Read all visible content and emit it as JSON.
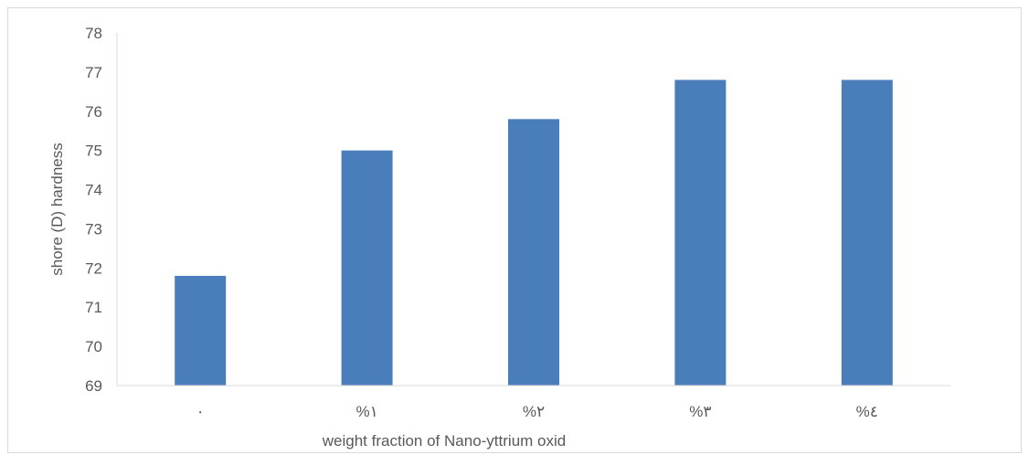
{
  "chart_data": {
    "type": "bar",
    "categories": [
      "٠",
      "%١",
      "%٢",
      "%٣",
      "%٤"
    ],
    "values": [
      71.8,
      75.0,
      75.8,
      76.8,
      76.8
    ],
    "title": "",
    "xlabel": "weight fraction of Nano-yttrium oxid",
    "ylabel": "shore (D)  hardness",
    "ylim": [
      69,
      78
    ],
    "yticks": [
      69,
      70,
      71,
      72,
      73,
      74,
      75,
      76,
      77,
      78
    ],
    "bar_color": "#4a7ebb",
    "grid": false,
    "legend": "none"
  }
}
